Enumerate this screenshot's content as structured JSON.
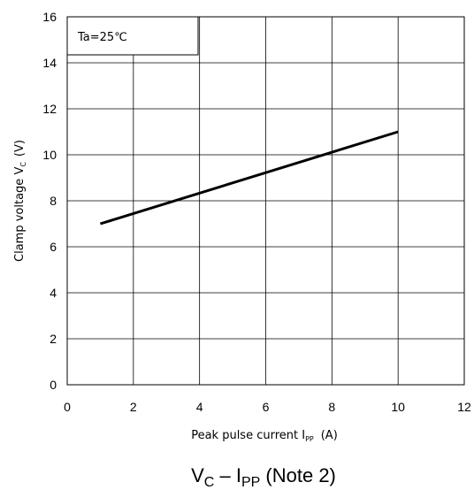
{
  "chart_data": {
    "type": "line",
    "title": "",
    "xlabel": {
      "main": "Peak pulse current I",
      "sub": "PP",
      "unit": "(A)"
    },
    "ylabel": {
      "main": "Clamp voltage V",
      "sub": "C",
      "unit": "(V)"
    },
    "xlim": [
      0,
      12
    ],
    "ylim": [
      0,
      16
    ],
    "x_ticks": [
      0,
      2,
      4,
      6,
      8,
      10,
      12
    ],
    "y_ticks": [
      0,
      2,
      4,
      6,
      8,
      10,
      12,
      14,
      16
    ],
    "grid": true,
    "series": [
      {
        "x": [
          1,
          10
        ],
        "y": [
          7.0,
          11.0
        ],
        "color": "#000000"
      }
    ],
    "annotation": "Ta=25℃"
  },
  "caption": {
    "v": "V",
    "v_sub": "C",
    "dash": " – ",
    "i": "I",
    "i_sub": "PP",
    "note": " (Note 2)"
  }
}
